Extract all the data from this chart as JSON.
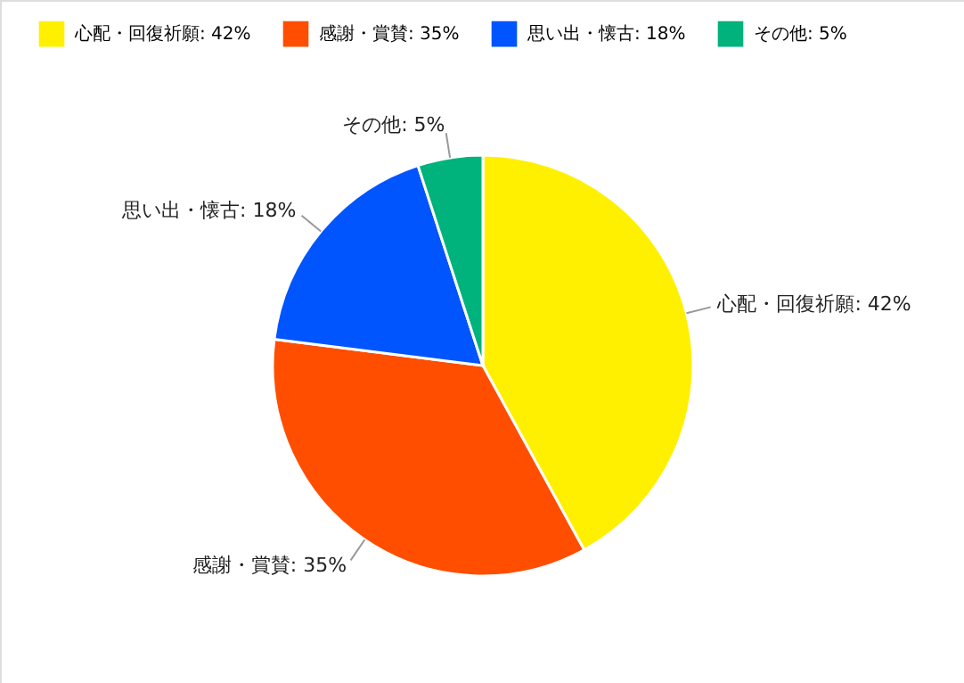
{
  "chart_data": {
    "type": "pie",
    "categories": [
      "心配・回復祈願: 42%",
      "感謝・賞賛: 35%",
      "思い出・懐古: 18%",
      "その他: 5%"
    ],
    "values": [
      42,
      35,
      18,
      5
    ],
    "colors": [
      "#fff000",
      "#ff4e00",
      "#0055ff",
      "#00b27b"
    ],
    "legend": "top"
  }
}
